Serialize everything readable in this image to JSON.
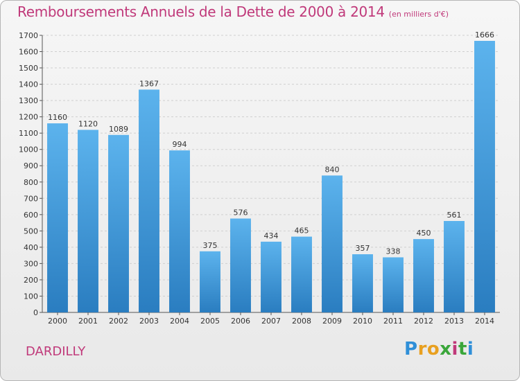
{
  "header": {
    "title": "Remboursements Annuels de la Dette de 2000 à 2014",
    "subtitle": "(en milliers d'€)"
  },
  "footer": {
    "commune": "DARDILLY",
    "logo_letters": [
      "P",
      "r",
      "o",
      "x",
      "i",
      "t",
      "i"
    ]
  },
  "colors": {
    "title": "#c0397a",
    "bar_top": "#5cb3ed",
    "bar_bottom": "#2a7dc0",
    "logo": [
      "#2f8fd8",
      "#e8a020",
      "#e8a020",
      "#3aa63a",
      "#c0397a",
      "#3aa63a",
      "#2f8fd8"
    ]
  },
  "chart_data": {
    "type": "bar",
    "title": "Remboursements Annuels de la Dette de 2000 à 2014",
    "subtitle": "(en milliers d'€)",
    "categories": [
      "2000",
      "2001",
      "2002",
      "2003",
      "2004",
      "2005",
      "2006",
      "2007",
      "2008",
      "2009",
      "2010",
      "2011",
      "2012",
      "2013",
      "2014"
    ],
    "values": [
      1160,
      1120,
      1089,
      1367,
      994,
      375,
      576,
      434,
      465,
      840,
      357,
      338,
      450,
      561,
      1666
    ],
    "ylim": [
      0,
      1700
    ],
    "yticks": [
      0,
      100,
      200,
      300,
      400,
      500,
      600,
      700,
      800,
      900,
      1000,
      1100,
      1200,
      1300,
      1400,
      1500,
      1600,
      1700
    ],
    "grid": true,
    "data_labels": true,
    "legend": "none"
  }
}
